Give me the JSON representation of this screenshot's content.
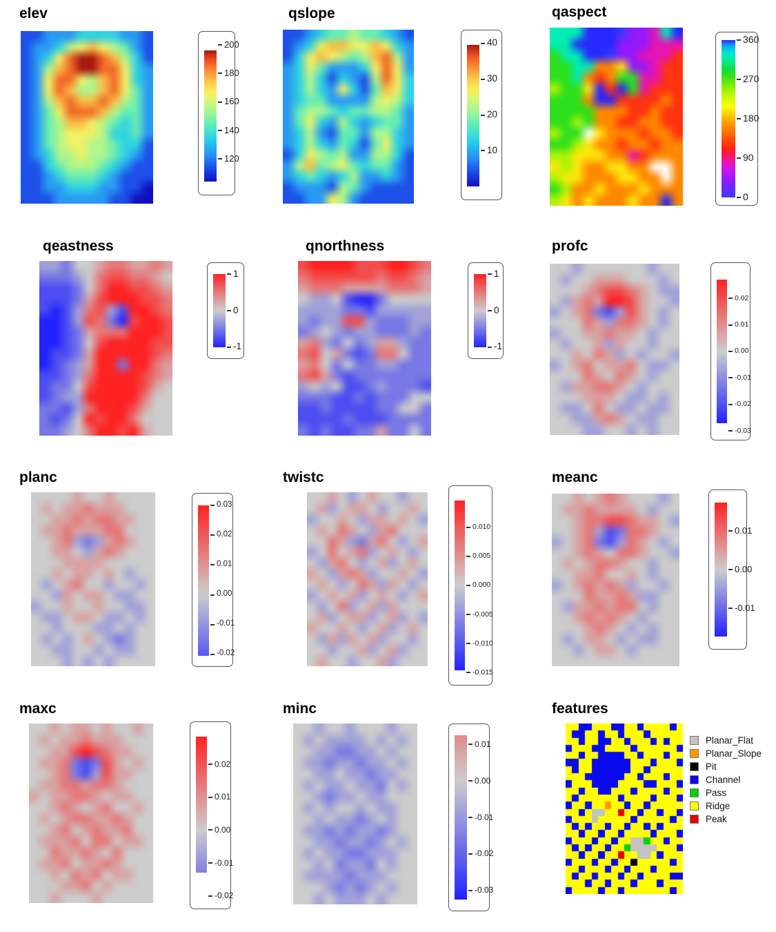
{
  "figure_title": "",
  "colors": {
    "background": "#ffffff",
    "legend_border": "#555555",
    "tick_dash": "#333333",
    "tick_label": "#1a1a1a",
    "title": "#000000",
    "diverging_positive": "#ff2222",
    "diverging_zero": "#cdcdcd",
    "diverging_negative": "#2222ff",
    "na_white": "#ffffff"
  },
  "colormaps": {
    "rainbow": [
      [
        0.0,
        "#1010c0"
      ],
      [
        0.1,
        "#1b4ae8"
      ],
      [
        0.2,
        "#2b8df5"
      ],
      [
        0.3,
        "#23c8f0"
      ],
      [
        0.4,
        "#49e8c8"
      ],
      [
        0.5,
        "#8cf5a0"
      ],
      [
        0.6,
        "#cdf87e"
      ],
      [
        0.68,
        "#f8f060"
      ],
      [
        0.76,
        "#fcc84a"
      ],
      [
        0.84,
        "#fa9132"
      ],
      [
        0.92,
        "#ef5222"
      ],
      [
        1.0,
        "#a81a10"
      ]
    ],
    "hue": [
      [
        0.0,
        "#3c3cff"
      ],
      [
        0.1,
        "#8a1aff"
      ],
      [
        0.2,
        "#e014e0"
      ],
      [
        0.3,
        "#ff1a1a"
      ],
      [
        0.4,
        "#ff6400"
      ],
      [
        0.5,
        "#ffb400"
      ],
      [
        0.58,
        "#ffff14"
      ],
      [
        0.7,
        "#8cf000"
      ],
      [
        0.8,
        "#14dc28"
      ],
      [
        0.9,
        "#00f0c8"
      ],
      [
        0.95,
        "#00d2f0"
      ],
      [
        1.0,
        "#2828ff"
      ]
    ]
  },
  "chart_data": {
    "type": "heatmap",
    "description": "3x4 grid of terrain-attribute raster maps, each with its own colorbar legend",
    "panels": [
      {
        "id": "elev",
        "title": "elev",
        "kind": "continuous",
        "colormap": "rainbow",
        "legend": {
          "scale": [
            204,
            100
          ],
          "bar": [
            196,
            104
          ],
          "ticks": [
            200,
            180,
            160,
            140,
            120
          ],
          "decimals": 0
        },
        "grid": [
          "112223333221",
          "122356765421",
          "123689987531",
          "125789988632",
          "126886578632",
          "126875578642",
          "125787787542",
          "124688875442",
          "124577654342",
          "124566653342",
          "124566554331",
          "123556554321",
          "113455543211",
          "112344432111",
          "112233322110",
          "111222221100"
        ]
      },
      {
        "id": "qslope",
        "title": "qslope",
        "kind": "continuous",
        "colormap": "rainbow",
        "legend": {
          "scale": [
            41.5,
            -1.5
          ],
          "bar": [
            39.5,
            0
          ],
          "ticks": [
            40,
            30,
            20,
            10
          ],
          "decimals": 0
        },
        "grid": [
          "112344544321",
          "123677667632",
          "136765457852",
          "236422236862",
          "235313215863",
          "235326314763",
          "234422225653",
          "245543445542",
          "246325323442",
          "235214425532",
          "235324314632",
          "136545225531",
          "257456434421",
          "234323522321",
          "122215421111",
          "112265211111"
        ]
      },
      {
        "id": "qaspect",
        "title": "qaspect",
        "kind": "continuous",
        "colormap": "hue",
        "legend": {
          "scale": [
            360,
            0
          ],
          "bar": [
            360,
            0
          ],
          "ticks": [
            360,
            270,
            180,
            90,
            0
          ],
          "decimals": 0
        },
        "grid": [
          "888999011289",
          "889999111222",
          "788990112223",
          "778844511233",
          "778434772233",
          "677593972333",
          "777499333343",
          "777744433433",
          "776744334433",
          "677W54443443",
          "776544344344",
          "665554423444",
          "565445544WW4",
          "6554445544W4",
          "764454445444",
          "654544454494"
        ]
      },
      {
        "id": "qeastness",
        "title": "qeastness",
        "kind": "diverging",
        "legend": {
          "scale": [
            1.1,
            -1.1
          ],
          "bar": [
            1,
            -1
          ],
          "ticks": [
            1,
            0,
            -1
          ],
          "decimals": 0
        },
        "grid": [
          "332445665565",
          "222346776654",
          "111246887765",
          "111257888776",
          "101367318876",
          "001376207887",
          "001256668887",
          "001247888877",
          "011258888876",
          "012358828865",
          "112368888765",
          "122478888754",
          "123388888644",
          "221368887544",
          "212487886444",
          "223468878544"
        ]
      },
      {
        "id": "qnorthness",
        "title": "qnorthness",
        "kind": "diverging",
        "legend": {
          "scale": [
            1.1,
            -1.1
          ],
          "bar": [
            1,
            -1
          ],
          "ticks": [
            1,
            0,
            -1
          ],
          "decimals": 0
        },
        "grid": [
          "788887778876",
          "677777767765",
          "566655556665",
          "433410024444",
          "333322133333",
          "323377322233",
          "234323322232",
          "563242355322",
          "674521266422",
          "564242233222",
          "675212222222",
          "343411232221",
          "222112122244",
          "112111122442",
          "111121112222",
          "212112252242"
        ]
      },
      {
        "id": "profc",
        "title": "profc",
        "kind": "diverging",
        "legend": {
          "scale": [
            0.0305,
            -0.0305
          ],
          "bar": [
            0.027,
            -0.027
          ],
          "ticks": [
            0.02,
            0.01,
            0,
            -0.01,
            -0.02,
            -0.03
          ],
          "decimals": 2
        },
        "grid": [
          "443444444344",
          "434455544434",
          "444567765433",
          "435658875443",
          "345621375434",
          "444653665434",
          "344556554344",
          "434453544344",
          "445465343443",
          "345645564334",
          "444654654344",
          "435566543444",
          "444555433434",
          "433464334334",
          "443356543344",
          "444334434344"
        ]
      },
      {
        "id": "planc",
        "title": "planc",
        "kind": "diverging",
        "legend": {
          "scale": [
            0.0315,
            -0.0215
          ],
          "bar": [
            0.0302,
            -0.0205
          ],
          "ticks": [
            0.03,
            0.02,
            0.01,
            0,
            -0.01,
            -0.02
          ],
          "decimals": 2
        },
        "grid": [
          "444454454444",
          "454556555444",
          "445565665544",
          "455655566444",
          "445632356544",
          "445543565444",
          "444555544444",
          "445455454344",
          "434564434434",
          "443545543344",
          "344544544334",
          "433455433434",
          "443444334344",
          "434345432344",
          "443344343344",
          "444343434444"
        ]
      },
      {
        "id": "twistc",
        "title": "twistc",
        "kind": "diverging",
        "legend": {
          "scale": [
            0.0158,
            -0.0158
          ],
          "bar": [
            0.0146,
            -0.0146
          ],
          "ticks": [
            0.01,
            0.005,
            0,
            -0.005,
            -0.01,
            -0.015
          ],
          "decimals": 3
        },
        "grid": [
          "445434544344",
          "453455434454",
          "344543554543",
          "454654356444",
          "446532564345",
          "346456345434",
          "435643453454",
          "543565344543",
          "454346535434",
          "345453454345",
          "434634535444",
          "453455345343",
          "544543453454",
          "435354534434",
          "443445345344",
          "454434453444"
        ]
      },
      {
        "id": "meanc",
        "title": "meanc",
        "kind": "diverging",
        "legend": {
          "scale": [
            0.0185,
            -0.0185
          ],
          "bar": [
            0.0172,
            -0.0172
          ],
          "ticks": [
            0.01,
            0,
            -0.01
          ],
          "decimals": 2
        },
        "grid": [
          "445456544434",
          "455655554344",
          "445667765543",
          "445631266544",
          "345621365434",
          "445654665443",
          "454566544344",
          "445564454344",
          "345656534434",
          "444655653344",
          "435565664344",
          "445656543444",
          "444565434344",
          "434554343344",
          "443455434444",
          "444444444444"
        ]
      },
      {
        "id": "maxc",
        "title": "maxc",
        "kind": "diverging",
        "legend": {
          "scale": [
            0.0305,
            -0.0215
          ],
          "bar": [
            0.0285,
            -0.013
          ],
          "ticks": [
            0.02,
            0.01,
            0,
            -0.01,
            -0.02
          ],
          "decimals": 2
        },
        "grid": [
          "445455454454",
          "454556555444",
          "445578765544",
          "455621275454",
          "445621375544",
          "455665665444",
          "545566545544",
          "445654564454",
          "454566556544",
          "445645655644",
          "455564664554",
          "446556546444",
          "455645565444",
          "445465645544",
          "444556454444",
          "445444544444"
        ]
      },
      {
        "id": "minc",
        "title": "minc",
        "kind": "diverging",
        "legend": {
          "scale": [
            0.0135,
            -0.0335
          ],
          "bar": [
            0.0125,
            -0.0325
          ],
          "ticks": [
            0.01,
            0,
            -0.01,
            -0.02,
            -0.03
          ],
          "decimals": 2
        },
        "grid": [
          "443443444344",
          "434333343434",
          "443322334344",
          "433233233434",
          "443343323344",
          "434334332434",
          "443233433444",
          "434344343344",
          "443433234344",
          "433232332344",
          "443323323434",
          "434332233344",
          "443423324344",
          "433332333444",
          "444323234344",
          "443433343444"
        ]
      },
      {
        "id": "features",
        "title": "features",
        "kind": "categorical",
        "classes": {
          "F": {
            "label": "Planar_Flat",
            "color": "#c3c3c3"
          },
          "S": {
            "label": "Planar_Slope",
            "color": "#ff9900"
          },
          "P": {
            "label": "Pit",
            "color": "#000000"
          },
          "C": {
            "label": "Channel",
            "color": "#0a0af0"
          },
          "A": {
            "label": "Pass",
            "color": "#00d200"
          },
          "R": {
            "label": "Ridge",
            "color": "#ffff00"
          },
          "K": {
            "label": "Peak",
            "color": "#e60000"
          }
        },
        "legend_order": [
          "F",
          "S",
          "P",
          "C",
          "A",
          "R",
          "K"
        ],
        "grid": [
          "RRCCRRRCCRRCRRRRCR",
          "RCCRRCRRCRRRCRRRRR",
          "RRCRRCCRRCRRRCRCRR",
          "CRRRCCRRRRCRRRRRRC",
          "RRCRRCCCCRRCRRRCRR",
          "CCRRCCCCCCRRRCRRRC",
          "RCRRCCCCCCRRCRRRRR",
          "RRRCCCCCCRRCRRRCRR",
          "CRRRCCCCRRRRCCRRRC",
          "RRCRRCCRRRCRRRRCRR",
          "RCRRRRRRCRRRRCRRRC",
          "CRRCRRSRRCRRCRRRRR",
          "RRCRFFRRKRRCRRCRRC",
          "CRRRFRRRRRCRRRRRCR",
          "RCRCRRCRRCRRCRCRRR",
          "RRCRRCRRCRRRRCRRRC",
          "CRRRCRRCRRFFARRCRR",
          "RCRCRRCRRAFFFFRRRC",
          "RRCRRCRRKRRFFRCRRR",
          "CRRRCRRCRRPRRRRRCR",
          "RRCRRRCRRCRRRCRRRR",
          "RCRRCRRRCRRCRRRRCC",
          "RRRCRRCRRRCRRRCRRR",
          "CRRRRCRRCRRRRRRRCR"
        ]
      }
    ]
  }
}
